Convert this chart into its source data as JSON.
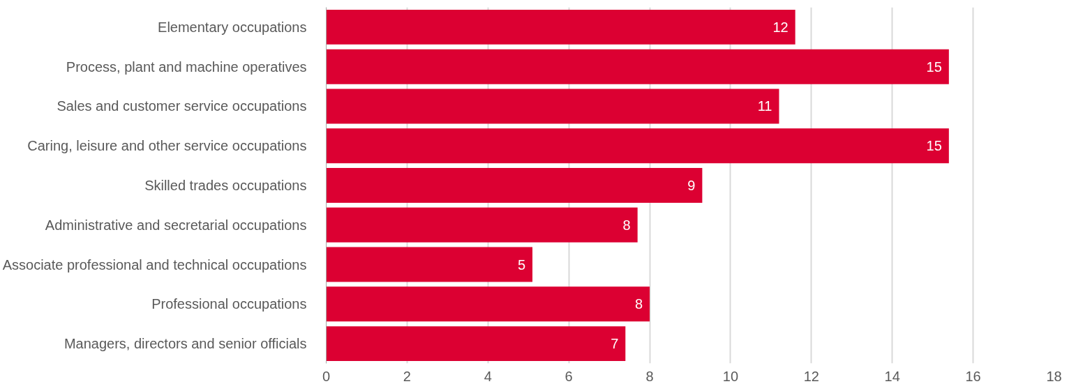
{
  "chart_data": {
    "type": "bar",
    "orientation": "horizontal",
    "categories": [
      "Elementary occupations",
      "Process, plant and machine operatives",
      "Sales and customer service occupations",
      "Caring, leisure and other service occupations",
      "Skilled trades occupations",
      "Administrative and secretarial occupations",
      "Associate professional and technical occupations",
      "Professional occupations",
      "Managers, directors and senior officials"
    ],
    "values": [
      11.6,
      15.4,
      11.2,
      15.4,
      9.3,
      7.7,
      5.1,
      8.0,
      7.4
    ],
    "value_labels": [
      "12",
      "15",
      "11",
      "15",
      "9",
      "8",
      "5",
      "8",
      "7"
    ],
    "color": "#dc0032",
    "xlim": [
      0,
      18
    ],
    "xticks": [
      0,
      2,
      4,
      6,
      8,
      10,
      12,
      14,
      16,
      18
    ],
    "grid": "x"
  }
}
